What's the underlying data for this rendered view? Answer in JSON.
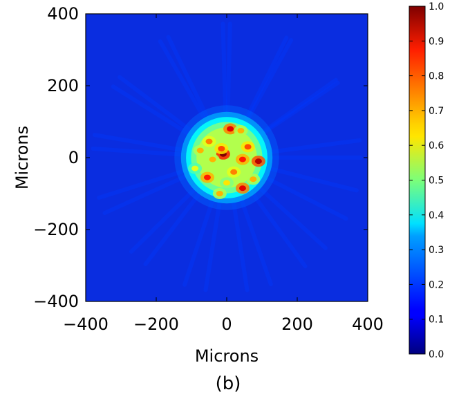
{
  "chart_data": {
    "type": "heatmap",
    "xlabel": "Microns",
    "ylabel": "Microns",
    "xlim": [
      -400,
      400
    ],
    "ylim": [
      -400,
      400
    ],
    "x_ticks": [
      -400,
      -200,
      0,
      200,
      400
    ],
    "y_ticks": [
      -400,
      -200,
      0,
      200,
      400
    ],
    "x_tick_labels": [
      "−400",
      "−200",
      "0",
      "200",
      "400"
    ],
    "y_tick_labels": [
      "−400",
      "−200",
      "0",
      "200",
      "400"
    ],
    "colormap": "jet",
    "value_range": [
      0.0,
      1.0
    ],
    "colorbar_ticks": [
      0.0,
      0.1,
      0.2,
      0.3,
      0.4,
      0.5,
      0.6,
      0.7,
      0.8,
      0.9,
      1.0
    ],
    "colorbar_tick_labels": [
      "0.0",
      "0.1",
      "0.2",
      "0.3",
      "0.4",
      "0.5",
      "0.6",
      "0.7",
      "0.8",
      "0.9",
      "1.0"
    ],
    "spot": {
      "center": [
        0,
        0
      ],
      "radius_microns": 110,
      "mean_intensity": 0.6,
      "background_intensity": 0.1
    },
    "hot_spots": [
      {
        "x": -10,
        "y": 10,
        "value": 1.0
      },
      {
        "x": 90,
        "y": -10,
        "value": 0.95
      },
      {
        "x": 10,
        "y": 80,
        "value": 0.9
      },
      {
        "x": 45,
        "y": -85,
        "value": 0.9
      },
      {
        "x": 45,
        "y": -5,
        "value": 0.85
      },
      {
        "x": -55,
        "y": -55,
        "value": 0.85
      },
      {
        "x": -15,
        "y": 25,
        "value": 0.8
      },
      {
        "x": 60,
        "y": 30,
        "value": 0.8
      },
      {
        "x": -50,
        "y": 45,
        "value": 0.75
      },
      {
        "x": 20,
        "y": -40,
        "value": 0.75
      },
      {
        "x": -40,
        "y": -5,
        "value": 0.7
      },
      {
        "x": -75,
        "y": 20,
        "value": 0.7
      },
      {
        "x": 40,
        "y": 75,
        "value": 0.7
      },
      {
        "x": -20,
        "y": -100,
        "value": 0.7
      },
      {
        "x": 75,
        "y": -60,
        "value": 0.7
      },
      {
        "x": 0,
        "y": -70,
        "value": 0.65
      },
      {
        "x": -90,
        "y": -30,
        "value": 0.6
      }
    ]
  },
  "caption": "(b)"
}
